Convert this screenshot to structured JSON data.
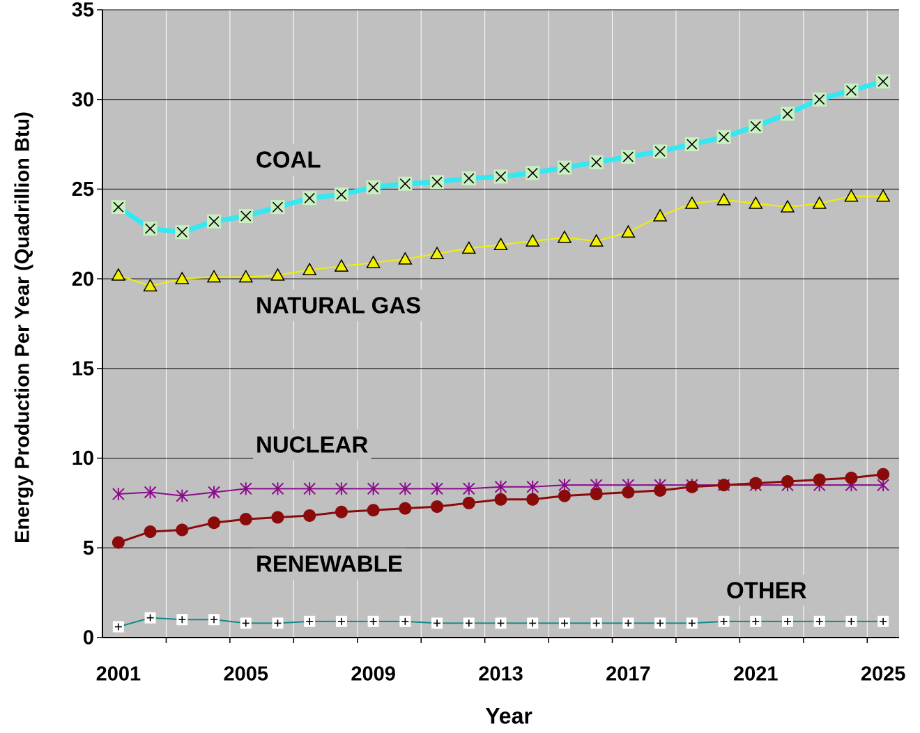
{
  "chart_data": {
    "type": "line",
    "ylabel": "Energy Production Per Year (Quadrillion Btu)",
    "xlabel": "Year",
    "categories": [
      2001,
      null,
      null,
      null,
      2005,
      null,
      null,
      null,
      2009,
      null,
      null,
      null,
      2013,
      null,
      null,
      null,
      2017,
      null,
      null,
      null,
      2021,
      null,
      null,
      null,
      2025
    ],
    "ylim": [
      0,
      35
    ],
    "yticks": [
      0,
      5,
      10,
      15,
      20,
      25,
      30,
      35
    ],
    "grid": true,
    "background": "#c0c0c0",
    "series": [
      {
        "name": "COAL",
        "color": "#33e8f2",
        "marker": "x",
        "marker_fill": "#c8f0c0",
        "values": [
          24.0,
          22.8,
          22.6,
          23.2,
          23.5,
          24.0,
          24.5,
          24.7,
          25.1,
          25.3,
          25.4,
          25.6,
          25.7,
          25.9,
          26.2,
          26.5,
          26.8,
          27.1,
          27.5,
          27.9,
          28.5,
          29.2,
          30.0,
          30.5,
          31.0
        ]
      },
      {
        "name": "NATURAL GAS",
        "color": "#f2f000",
        "marker": "triangle",
        "marker_fill": "#f2f000",
        "values": [
          20.2,
          19.6,
          20.0,
          20.1,
          20.1,
          20.2,
          20.5,
          20.7,
          20.9,
          21.1,
          21.4,
          21.7,
          21.9,
          22.1,
          22.3,
          22.1,
          22.6,
          23.5,
          24.2,
          24.4,
          24.2,
          24.0,
          24.2,
          24.6,
          24.6
        ]
      },
      {
        "name": "NUCLEAR",
        "color": "#8b0a8b",
        "marker": "asterisk",
        "marker_fill": "#8b0a8b",
        "values": [
          8.0,
          8.1,
          7.9,
          8.1,
          8.3,
          8.3,
          8.3,
          8.3,
          8.3,
          8.3,
          8.3,
          8.3,
          8.4,
          8.4,
          8.5,
          8.5,
          8.5,
          8.5,
          8.5,
          8.5,
          8.5,
          8.5,
          8.5,
          8.5,
          8.5
        ]
      },
      {
        "name": "RENEWABLE",
        "color": "#8b0a0a",
        "marker": "circle",
        "marker_fill": "#8b0a0a",
        "values": [
          5.3,
          5.9,
          6.0,
          6.4,
          6.6,
          6.7,
          6.8,
          7.0,
          7.1,
          7.2,
          7.3,
          7.5,
          7.7,
          7.7,
          7.9,
          8.0,
          8.1,
          8.2,
          8.4,
          8.5,
          8.6,
          8.7,
          8.8,
          8.9,
          9.1
        ]
      },
      {
        "name": "OTHER",
        "color": "#108a8a",
        "marker": "plus",
        "marker_fill": "#ffffff",
        "values": [
          0.6,
          1.1,
          1.0,
          1.0,
          0.8,
          0.8,
          0.9,
          0.9,
          0.9,
          0.9,
          0.8,
          0.8,
          0.8,
          0.8,
          0.8,
          0.8,
          0.8,
          0.8,
          0.8,
          0.9,
          0.9,
          0.9,
          0.9,
          0.9,
          0.9
        ]
      }
    ]
  }
}
